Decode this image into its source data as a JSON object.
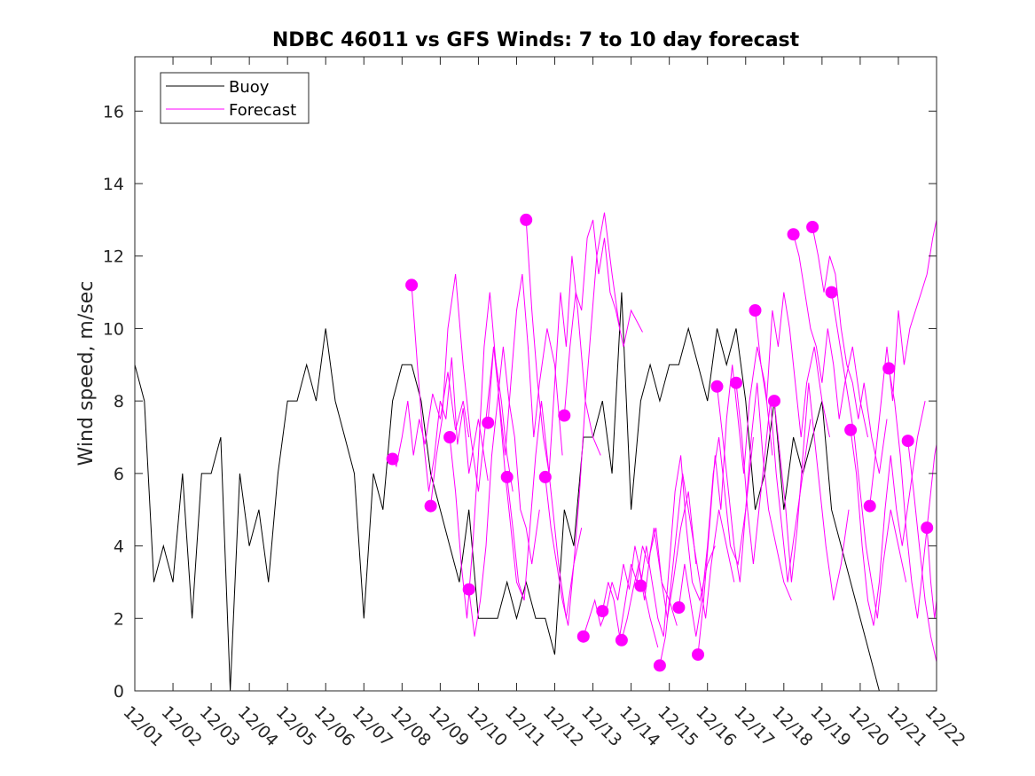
{
  "chart_data": {
    "type": "line",
    "title": "NDBC 46011 vs GFS Winds: 7 to 10 day forecast",
    "xlabel": "",
    "ylabel": "Wind speed, m/sec",
    "xlim": [
      0,
      21
    ],
    "ylim": [
      0,
      17.5
    ],
    "categories": [
      "12/01",
      "12/02",
      "12/03",
      "12/04",
      "12/05",
      "12/06",
      "12/07",
      "12/08",
      "12/09",
      "12/10",
      "12/11",
      "12/12",
      "12/13",
      "12/14",
      "12/15",
      "12/16",
      "12/17",
      "12/18",
      "12/19",
      "12/20",
      "12/21",
      "12/22"
    ],
    "y_ticks": [
      0,
      2,
      4,
      6,
      8,
      10,
      12,
      14,
      16
    ],
    "legend": {
      "position": "top-left",
      "entries": [
        "Buoy",
        "Forecast"
      ]
    },
    "colors": {
      "buoy": "#000000",
      "forecast": "#ff00ff"
    },
    "series": [
      {
        "name": "Buoy",
        "x": [
          0.0,
          0.25,
          0.5,
          0.75,
          1.0,
          1.25,
          1.5,
          1.75,
          2.0,
          2.25,
          2.5,
          2.75,
          3.0,
          3.25,
          3.5,
          3.75,
          4.0,
          4.25,
          4.5,
          4.75,
          5.0,
          5.25,
          5.5,
          5.75,
          6.0,
          6.25,
          6.5,
          6.75,
          7.0,
          7.25,
          7.5,
          7.75,
          8.0,
          8.25,
          8.5,
          8.75,
          9.0,
          9.25,
          9.5,
          9.75,
          10.0,
          10.25,
          10.5,
          10.75,
          11.0,
          11.25,
          11.5,
          11.75,
          12.0,
          12.25,
          12.5,
          12.75,
          13.0,
          13.25,
          13.5,
          13.75,
          14.0,
          14.25,
          14.5,
          14.75,
          15.0,
          15.25,
          15.5,
          15.75,
          16.0,
          16.25,
          16.5,
          16.75,
          17.0,
          17.25,
          17.5,
          17.75,
          18.0,
          18.25,
          18.5,
          18.75,
          19.0,
          19.25,
          19.5,
          19.75,
          20.0,
          20.25,
          20.5,
          20.75,
          21.0
        ],
        "values": [
          9,
          8,
          3,
          4,
          3,
          6,
          2,
          6,
          6,
          7,
          0,
          6,
          4,
          5,
          3,
          6,
          8,
          8,
          9,
          8,
          10,
          8,
          7,
          6,
          2,
          6,
          5,
          8,
          9,
          9,
          8,
          6,
          5,
          4,
          3,
          5,
          2,
          2,
          2,
          3,
          2,
          3,
          2,
          2,
          1,
          5,
          4,
          7,
          7,
          8,
          6,
          11,
          5,
          8,
          9,
          8,
          9,
          9,
          10,
          9,
          8,
          10,
          9,
          10,
          8,
          5,
          6,
          8,
          5,
          7,
          6,
          7,
          8,
          5,
          4,
          3,
          2,
          1,
          0,
          0,
          0,
          0,
          0,
          0,
          0
        ]
      },
      {
        "name": "Forecast",
        "x": [
          6.75,
          6.85,
          7.0,
          7.15,
          7.3,
          7.45,
          7.6,
          7.8,
          8.0,
          8.2,
          8.4,
          8.6,
          8.75
        ],
        "values": [
          6.4,
          6.2,
          7.0,
          8.0,
          6.5,
          7.5,
          6.8,
          8.2,
          7.5,
          8.8,
          7.2,
          8.0,
          7.0
        ]
      },
      {
        "name": "Forecast",
        "x": [
          7.25,
          7.4,
          7.55,
          7.7,
          7.85,
          8.0,
          8.15,
          8.3,
          8.45,
          8.6,
          8.75,
          9.0,
          9.25
        ],
        "values": [
          11.2,
          9.0,
          7.0,
          5.5,
          6.5,
          8.0,
          7.5,
          9.2,
          6.8,
          7.8,
          6.0,
          7.5,
          5.8
        ]
      },
      {
        "name": "Forecast",
        "x": [
          7.75,
          7.9,
          8.05,
          8.2,
          8.4,
          8.6,
          8.8,
          9.0,
          9.2,
          9.4,
          9.6,
          9.75,
          9.9
        ],
        "values": [
          5.1,
          6.5,
          7.5,
          10.0,
          11.5,
          9.0,
          7.0,
          5.5,
          7.5,
          9.5,
          8.0,
          6.5,
          5.5
        ]
      },
      {
        "name": "Forecast",
        "x": [
          8.25,
          8.4,
          8.55,
          8.7,
          8.85,
          9.0,
          9.15,
          9.3,
          9.5,
          9.7,
          9.85,
          10.0,
          10.2
        ],
        "values": [
          7.0,
          5.5,
          3.5,
          2.0,
          4.0,
          6.5,
          9.5,
          11.0,
          8.5,
          6.0,
          4.5,
          3.0,
          2.5
        ]
      },
      {
        "name": "Forecast",
        "x": [
          8.75,
          8.9,
          9.05,
          9.2,
          9.35,
          9.5,
          9.65,
          9.8,
          9.95,
          10.1,
          10.25,
          10.4,
          10.6
        ],
        "values": [
          2.8,
          1.5,
          2.5,
          4.0,
          6.5,
          8.0,
          9.5,
          8.0,
          7.0,
          5.0,
          4.5,
          3.5,
          5.0
        ]
      },
      {
        "name": "Forecast",
        "x": [
          9.25,
          9.4,
          9.55,
          9.7,
          9.85,
          10.0,
          10.15,
          10.3,
          10.45,
          10.6,
          10.8,
          11.0,
          11.2
        ],
        "values": [
          7.4,
          9.5,
          8.0,
          6.5,
          8.5,
          10.5,
          11.5,
          9.5,
          7.0,
          8.5,
          10.0,
          9.0,
          6.5
        ]
      },
      {
        "name": "Forecast",
        "x": [
          9.75,
          9.9,
          10.05,
          10.2,
          10.35,
          10.5,
          10.65,
          10.8,
          10.95,
          11.1,
          11.3,
          11.5,
          11.7
        ],
        "values": [
          5.9,
          4.5,
          3.0,
          2.5,
          4.5,
          6.5,
          8.0,
          6.5,
          5.0,
          3.5,
          2.0,
          3.5,
          4.5
        ]
      },
      {
        "name": "Forecast",
        "x": [
          10.25,
          10.4,
          10.55,
          10.7,
          10.85,
          11.0,
          11.15,
          11.3,
          11.45,
          11.6,
          11.8,
          12.0,
          12.2
        ],
        "values": [
          13.0,
          10.5,
          8.5,
          7.0,
          6.0,
          8.5,
          11.0,
          9.5,
          12.0,
          10.5,
          8.0,
          7.0,
          6.5
        ]
      },
      {
        "name": "Forecast",
        "x": [
          10.75,
          10.9,
          11.05,
          11.2,
          11.35,
          11.5,
          11.65,
          11.8,
          11.95,
          12.1,
          12.3,
          12.5,
          12.7
        ],
        "values": [
          5.9,
          4.5,
          3.5,
          2.5,
          1.8,
          3.5,
          5.5,
          8.0,
          10.0,
          12.0,
          13.2,
          11.5,
          10.0
        ]
      },
      {
        "name": "Forecast",
        "x": [
          11.25,
          11.4,
          11.55,
          11.7,
          11.85,
          12.0,
          12.15,
          12.3,
          12.45,
          12.6,
          12.8,
          13.0,
          13.3
        ],
        "values": [
          7.6,
          9.5,
          11.0,
          10.5,
          12.5,
          13.0,
          11.5,
          12.5,
          11.0,
          10.5,
          9.5,
          10.5,
          9.9
        ]
      },
      {
        "name": "Forecast",
        "x": [
          11.75,
          11.9,
          12.05,
          12.2,
          12.35,
          12.5,
          12.65,
          12.8,
          12.95,
          13.1,
          13.3,
          13.5,
          13.7
        ],
        "values": [
          1.5,
          2.0,
          2.5,
          1.8,
          2.2,
          3.0,
          2.5,
          3.5,
          2.8,
          4.0,
          3.0,
          2.0,
          1.2
        ]
      },
      {
        "name": "Forecast",
        "x": [
          12.25,
          12.4,
          12.55,
          12.7,
          12.85,
          13.0,
          13.15,
          13.3,
          13.45,
          13.6,
          13.8,
          14.0,
          14.2
        ],
        "values": [
          2.2,
          3.0,
          2.5,
          1.5,
          2.5,
          3.5,
          3.0,
          4.0,
          3.5,
          4.5,
          3.0,
          2.5,
          1.8
        ]
      },
      {
        "name": "Forecast",
        "x": [
          12.75,
          12.9,
          13.05,
          13.2,
          13.35,
          13.5,
          13.65,
          13.8,
          13.95,
          14.1,
          14.3,
          14.5,
          14.7
        ],
        "values": [
          1.4,
          2.0,
          2.8,
          3.5,
          2.5,
          3.8,
          4.5,
          3.0,
          2.0,
          3.0,
          4.5,
          5.5,
          3.5
        ]
      },
      {
        "name": "Forecast",
        "x": [
          13.25,
          13.4,
          13.55,
          13.7,
          13.85,
          14.0,
          14.15,
          14.3,
          14.45,
          14.6,
          14.8,
          15.0,
          15.2
        ],
        "values": [
          2.9,
          4.0,
          3.0,
          2.0,
          1.5,
          3.5,
          5.5,
          6.5,
          4.5,
          3.0,
          2.5,
          3.5,
          4.0
        ]
      },
      {
        "name": "Forecast",
        "x": [
          13.75,
          13.9,
          14.05,
          14.2,
          14.35,
          14.5,
          14.65,
          14.8,
          14.95,
          15.1,
          15.3,
          15.5,
          15.7
        ],
        "values": [
          0.7,
          1.5,
          3.0,
          4.5,
          6.0,
          5.0,
          4.0,
          3.0,
          2.0,
          3.5,
          5.0,
          4.0,
          3.0
        ]
      },
      {
        "name": "Forecast",
        "x": [
          14.25,
          14.4,
          14.55,
          14.7,
          14.85,
          15.0,
          15.15,
          15.3,
          15.45,
          15.6,
          15.8,
          16.0,
          16.2
        ],
        "values": [
          2.3,
          3.5,
          2.5,
          1.5,
          2.5,
          4.0,
          6.0,
          7.0,
          5.5,
          4.0,
          3.5,
          5.0,
          7.0
        ]
      },
      {
        "name": "Forecast",
        "x": [
          14.75,
          14.9,
          15.05,
          15.2,
          15.35,
          15.5,
          15.65,
          15.8,
          15.95,
          16.1,
          16.3,
          16.5,
          16.7
        ],
        "values": [
          1.0,
          2.5,
          4.5,
          6.5,
          5.0,
          7.5,
          9.0,
          7.5,
          6.0,
          8.0,
          9.5,
          8.5,
          6.5
        ]
      },
      {
        "name": "Forecast",
        "x": [
          15.25,
          15.4,
          15.55,
          15.7,
          15.85,
          16.0,
          16.15,
          16.3,
          16.45,
          16.6,
          16.8,
          17.0,
          17.2
        ],
        "values": [
          8.4,
          7.0,
          5.5,
          4.0,
          3.0,
          5.0,
          7.0,
          8.5,
          6.5,
          5.0,
          4.0,
          3.0,
          2.5
        ]
      },
      {
        "name": "Forecast",
        "x": [
          15.75,
          15.9,
          16.05,
          16.2,
          16.35,
          16.5,
          16.65,
          16.8,
          16.95,
          17.1,
          17.3,
          17.5,
          17.7
        ],
        "values": [
          8.5,
          7.0,
          5.0,
          3.5,
          5.0,
          6.5,
          8.0,
          6.0,
          4.5,
          3.0,
          4.5,
          6.0,
          7.5
        ]
      },
      {
        "name": "Forecast",
        "x": [
          16.25,
          16.4,
          16.55,
          16.7,
          16.85,
          17.0,
          17.15,
          17.3,
          17.45,
          17.6,
          17.8,
          18.0,
          18.2
        ],
        "values": [
          10.5,
          9.0,
          8.0,
          10.5,
          9.5,
          11.0,
          10.0,
          8.5,
          7.0,
          8.5,
          9.5,
          8.0,
          7.0
        ]
      },
      {
        "name": "Forecast",
        "x": [
          16.75,
          16.9,
          17.05,
          17.2,
          17.35,
          17.5,
          17.65,
          17.8,
          17.95,
          18.1,
          18.3,
          18.5,
          18.7
        ],
        "values": [
          8.0,
          6.5,
          5.0,
          3.0,
          4.5,
          6.5,
          8.5,
          7.0,
          5.5,
          4.0,
          2.5,
          3.5,
          5.0
        ]
      },
      {
        "name": "Forecast",
        "x": [
          17.25,
          17.4,
          17.55,
          17.7,
          17.85,
          18.0,
          18.15,
          18.3,
          18.45,
          18.6,
          18.8,
          19.0,
          19.2
        ],
        "values": [
          12.6,
          12.0,
          11.0,
          10.0,
          9.5,
          8.5,
          10.0,
          9.0,
          7.5,
          8.5,
          9.5,
          8.0,
          7.0
        ]
      },
      {
        "name": "Forecast",
        "x": [
          17.75,
          17.9,
          18.05,
          18.2,
          18.35,
          18.5,
          18.65,
          18.8,
          18.95,
          19.1,
          19.3,
          19.5,
          19.7
        ],
        "values": [
          12.8,
          12.0,
          11.0,
          12.0,
          11.5,
          10.0,
          9.0,
          8.5,
          7.5,
          8.5,
          7.0,
          6.0,
          7.5
        ]
      },
      {
        "name": "Forecast",
        "x": [
          18.25,
          18.4,
          18.55,
          18.7,
          18.85,
          19.0,
          19.15,
          19.3,
          19.45,
          19.6,
          19.8,
          20.0,
          20.2
        ],
        "values": [
          11.0,
          10.0,
          9.0,
          8.0,
          7.0,
          5.5,
          4.0,
          3.0,
          2.0,
          3.5,
          5.0,
          4.0,
          3.0
        ]
      },
      {
        "name": "Forecast",
        "x": [
          18.75,
          18.9,
          19.05,
          19.2,
          19.35,
          19.5,
          19.65,
          19.8,
          19.95,
          20.1,
          20.3,
          20.5,
          20.7
        ],
        "values": [
          7.2,
          6.0,
          4.0,
          2.5,
          1.8,
          3.0,
          5.0,
          6.5,
          5.0,
          4.0,
          5.5,
          7.0,
          8.0
        ]
      },
      {
        "name": "Forecast",
        "x": [
          19.25,
          19.4,
          19.55,
          19.7,
          19.85,
          20.0,
          20.15,
          20.3,
          20.45,
          20.6,
          20.75,
          20.9,
          21.0
        ],
        "values": [
          5.1,
          6.5,
          8.0,
          9.5,
          8.0,
          10.5,
          9.0,
          10.0,
          10.5,
          11.0,
          11.5,
          12.5,
          13.0
        ]
      },
      {
        "name": "Forecast",
        "x": [
          19.75,
          19.9,
          20.05,
          20.2,
          20.35,
          20.5,
          20.65,
          20.8,
          20.95,
          21.0
        ],
        "values": [
          8.9,
          8.0,
          6.5,
          4.5,
          3.0,
          2.0,
          3.5,
          5.0,
          6.5,
          6.8
        ]
      },
      {
        "name": "Forecast",
        "x": [
          20.25,
          20.4,
          20.55,
          20.7,
          20.85,
          21.0
        ],
        "values": [
          6.9,
          5.5,
          4.0,
          2.5,
          1.5,
          0.8
        ]
      },
      {
        "name": "Forecast",
        "x": [
          20.75,
          20.85,
          20.95,
          21.0
        ],
        "values": [
          4.5,
          3.0,
          2.0,
          2.5
        ]
      }
    ]
  }
}
